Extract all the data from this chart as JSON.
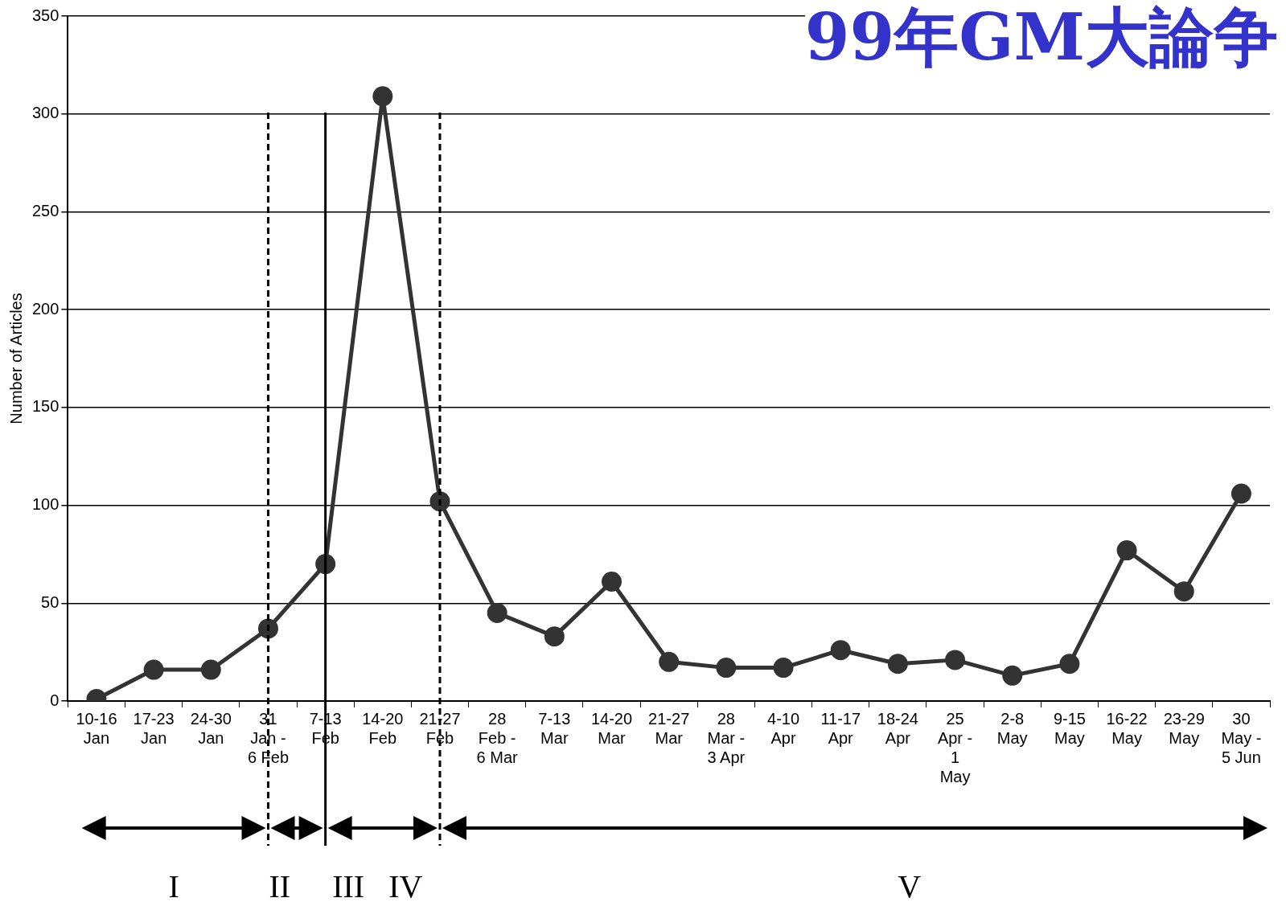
{
  "chart_data": {
    "type": "line",
    "title": "99年GM大論争",
    "ylabel": "Number of Articles",
    "categories": [
      "10-16\nJan",
      "17-23\nJan",
      "24-30\nJan",
      "31\nJan -\n6 Feb",
      "7-13\nFeb",
      "14-20\nFeb",
      "21-27\nFeb",
      "28\nFeb -\n6 Mar",
      "7-13\nMar",
      "14-20\nMar",
      "21-27\nMar",
      "28\nMar -\n3 Apr",
      "4-10\nApr",
      "11-17\nApr",
      "18-24\nApr",
      "25\nApr -\n1\nMay",
      "2-8\nMay",
      "9-15\nMay",
      "16-22\nMay",
      "23-29\nMay",
      "30\nMay -\n5 Jun"
    ],
    "series": [
      {
        "color": "#333333",
        "values": [
          1,
          16,
          16,
          37,
          70,
          309,
          102,
          45,
          33,
          61,
          20,
          17,
          17,
          26,
          19,
          21,
          13,
          19,
          77,
          56,
          106
        ]
      }
    ],
    "ylim": [
      0,
      350
    ],
    "yticks": [
      0,
      50,
      100,
      150,
      200,
      250,
      300,
      350
    ],
    "grid": "y",
    "legend": false,
    "marker": "circle",
    "line_style": "solid",
    "ref_lines": [
      {
        "axis": "x",
        "value": "31\nJan -\n6 Feb",
        "line_style": "dashed",
        "color": "#000000"
      },
      {
        "axis": "x",
        "value": "7-13\nFeb",
        "line_style": "solid",
        "color": "#000000"
      },
      {
        "axis": "x",
        "value": "21-27\nFeb",
        "line_style": "dashed",
        "color": "#000000"
      }
    ],
    "annotations": [
      "I",
      "II",
      "III",
      "IV",
      "V"
    ]
  }
}
